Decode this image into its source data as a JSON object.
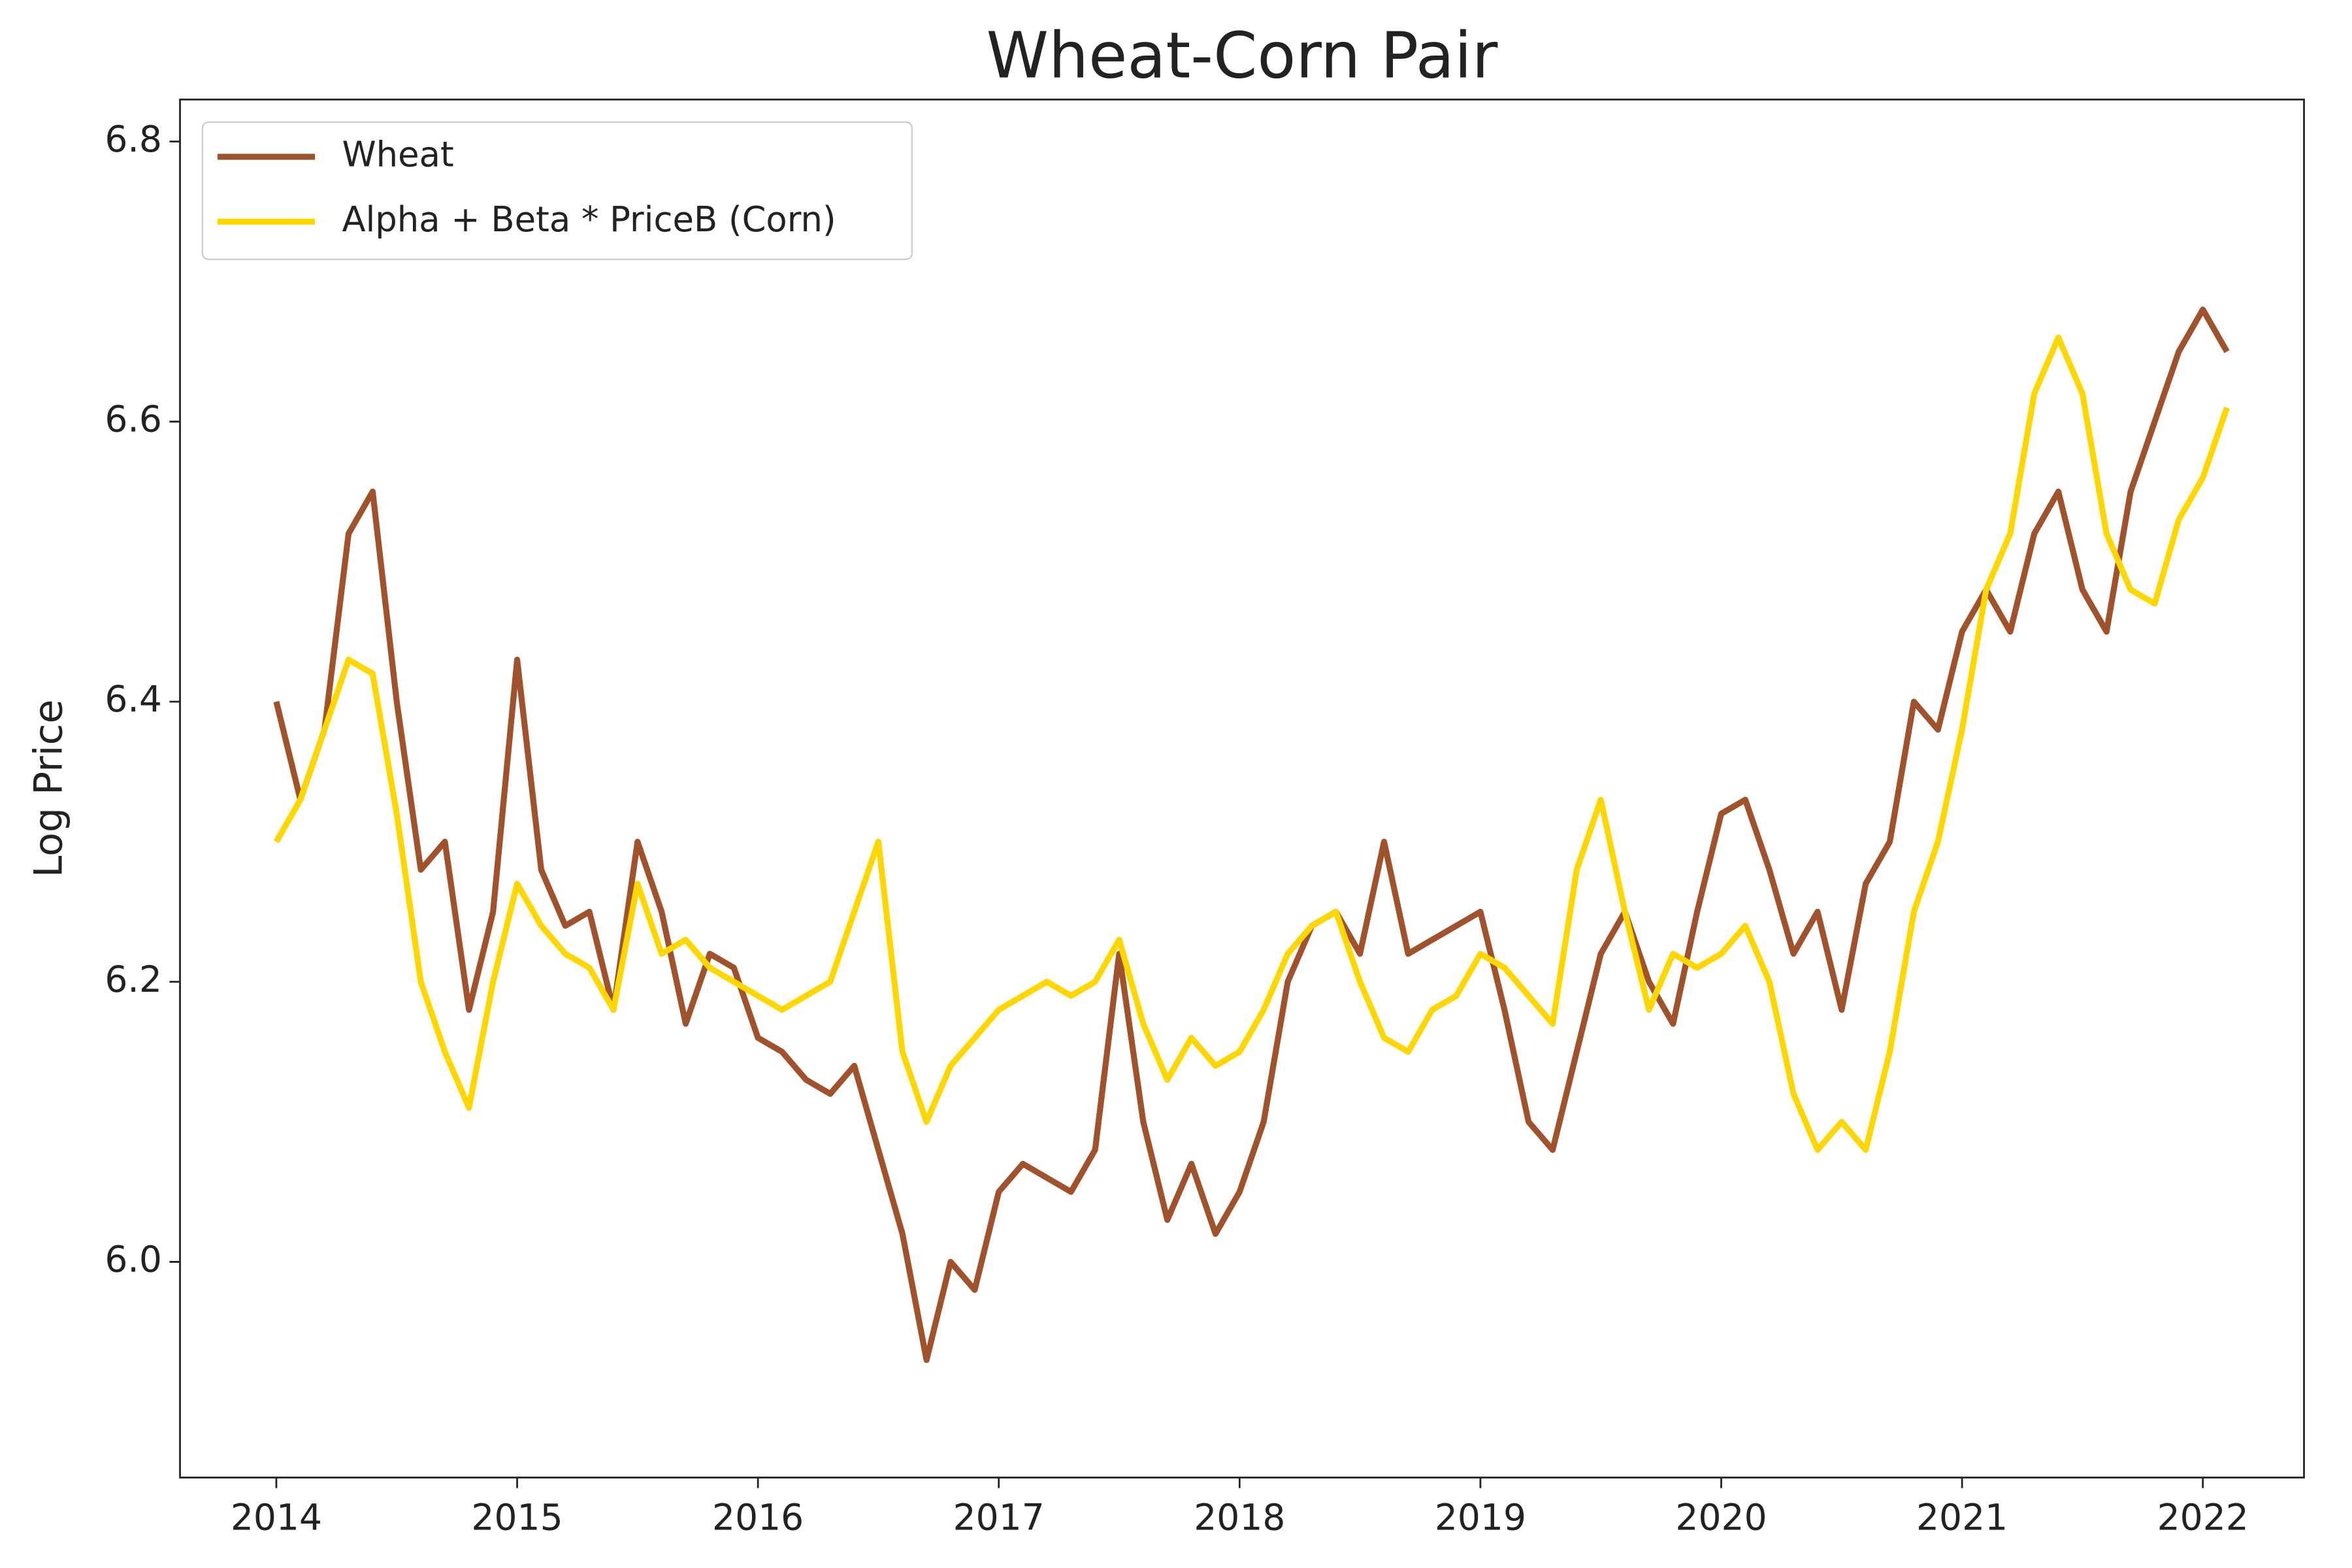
{
  "chart_data": {
    "type": "line",
    "title": "Wheat-Corn Pair",
    "y_label": "Log Price",
    "x": [
      2014.0,
      2014.1,
      2014.2,
      2014.3,
      2014.4,
      2014.5,
      2014.6,
      2014.7,
      2014.8,
      2014.9,
      2015.0,
      2015.1,
      2015.2,
      2015.3,
      2015.4,
      2015.5,
      2015.6,
      2015.7,
      2015.8,
      2015.9,
      2016.0,
      2016.1,
      2016.2,
      2016.3,
      2016.4,
      2016.5,
      2016.6,
      2016.7,
      2016.8,
      2016.9,
      2017.0,
      2017.1,
      2017.2,
      2017.3,
      2017.4,
      2017.5,
      2017.6,
      2017.7,
      2017.8,
      2017.9,
      2018.0,
      2018.1,
      2018.2,
      2018.3,
      2018.4,
      2018.5,
      2018.6,
      2018.7,
      2018.8,
      2018.9,
      2019.0,
      2019.1,
      2019.2,
      2019.3,
      2019.4,
      2019.5,
      2019.6,
      2019.7,
      2019.8,
      2019.9,
      2020.0,
      2020.1,
      2020.2,
      2020.3,
      2020.4,
      2020.5,
      2020.6,
      2020.7,
      2020.8,
      2020.9,
      2021.0,
      2021.1,
      2021.2,
      2021.3,
      2021.4,
      2021.5,
      2021.6,
      2021.7,
      2021.8,
      2021.9,
      2022.0,
      2022.1
    ],
    "series": [
      {
        "name": "Wheat",
        "color": "#a0522d",
        "values": [
          6.4,
          6.33,
          6.38,
          6.52,
          6.55,
          6.4,
          6.28,
          6.3,
          6.18,
          6.25,
          6.43,
          6.28,
          6.24,
          6.25,
          6.18,
          6.3,
          6.25,
          6.17,
          6.22,
          6.21,
          6.16,
          6.15,
          6.13,
          6.12,
          6.14,
          6.08,
          6.02,
          5.93,
          6.0,
          5.98,
          6.05,
          6.07,
          6.06,
          6.05,
          6.08,
          6.22,
          6.1,
          6.03,
          6.07,
          6.02,
          6.05,
          6.1,
          6.2,
          6.24,
          6.25,
          6.22,
          6.3,
          6.22,
          6.23,
          6.24,
          6.25,
          6.18,
          6.1,
          6.08,
          6.15,
          6.22,
          6.25,
          6.2,
          6.17,
          6.25,
          6.32,
          6.33,
          6.28,
          6.22,
          6.25,
          6.18,
          6.27,
          6.3,
          6.4,
          6.38,
          6.45,
          6.48,
          6.45,
          6.52,
          6.55,
          6.48,
          6.45,
          6.55,
          6.6,
          6.65,
          6.68,
          6.65
        ]
      },
      {
        "name": "Alpha + Beta * PriceB (Corn)",
        "color": "#ffd700",
        "values": [
          6.3,
          6.33,
          6.38,
          6.43,
          6.42,
          6.32,
          6.2,
          6.15,
          6.11,
          6.2,
          6.27,
          6.24,
          6.22,
          6.21,
          6.18,
          6.27,
          6.22,
          6.23,
          6.21,
          6.2,
          6.19,
          6.18,
          6.19,
          6.2,
          6.25,
          6.3,
          6.15,
          6.1,
          6.14,
          6.16,
          6.18,
          6.19,
          6.2,
          6.19,
          6.2,
          6.23,
          6.17,
          6.13,
          6.16,
          6.14,
          6.15,
          6.18,
          6.22,
          6.24,
          6.25,
          6.2,
          6.16,
          6.15,
          6.18,
          6.19,
          6.22,
          6.21,
          6.19,
          6.17,
          6.28,
          6.33,
          6.25,
          6.18,
          6.22,
          6.21,
          6.22,
          6.24,
          6.2,
          6.12,
          6.08,
          6.1,
          6.08,
          6.15,
          6.25,
          6.3,
          6.38,
          6.48,
          6.52,
          6.62,
          6.66,
          6.62,
          6.52,
          6.48,
          6.47,
          6.53,
          6.56,
          6.61
        ]
      }
    ],
    "xlim": [
      2013.6,
      2022.42
    ],
    "xticks": [
      2014,
      2015,
      2016,
      2017,
      2018,
      2019,
      2020,
      2021,
      2022
    ],
    "ylim": [
      5.846,
      6.83
    ],
    "yticks": [
      {
        "value": 6.0,
        "label": "6.0"
      },
      {
        "value": 6.2,
        "label": "6.2"
      },
      {
        "value": 6.4,
        "label": "6.4"
      },
      {
        "value": 6.6,
        "label": "6.6"
      },
      {
        "value": 6.8,
        "label": "6.8"
      }
    ],
    "legend": "upper left"
  }
}
